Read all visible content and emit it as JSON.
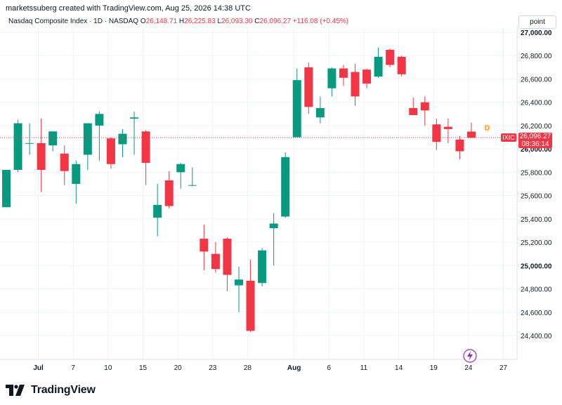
{
  "header": {
    "created_by": "marketssuberg created with TradingView.com, Aug 25, 2026 14:38 UTC",
    "title": "Nasdaq Composite Index · 1D · NASDAQ",
    "ohlc": {
      "o_label": "O",
      "o": "26,148.71",
      "h_label": "H",
      "h": "26,225.83",
      "l_label": "L",
      "l": "26,093.30",
      "c_label": "C",
      "c": "26,096.27",
      "change": "+116.08 (+0.45%)"
    },
    "scale_mode": "point"
  },
  "last_price": {
    "symbol": "IXIC",
    "value": "26,096.27",
    "countdown": "08:36:14"
  },
  "event_marker": "D",
  "brand": {
    "name": "TradingView"
  },
  "colors": {
    "up": "#089981",
    "down": "#f23645",
    "price_line": "#f23645",
    "grid": "#f0f3fa",
    "text": "#131722"
  },
  "chart_data": {
    "type": "candlestick",
    "y_axis": {
      "ticks": [
        27000,
        26800,
        26600,
        26400,
        26200,
        26000,
        25800,
        25600,
        25400,
        25200,
        25000,
        24800,
        24600,
        24400
      ],
      "tick_labels": [
        "27,000.00",
        "26,800.00",
        "26,600.00",
        "26,400.00",
        "26,200.00",
        "26,000.00",
        "25,800.00",
        "25,600.00",
        "25,400.00",
        "25,200.00",
        "25,000.00",
        "24,800.00",
        "24,600.00",
        "24,400.00"
      ],
      "ylim": [
        24230,
        27060
      ]
    },
    "x_axis": {
      "ticks": [
        {
          "label": "Jul",
          "index": 1
        },
        {
          "label": "7",
          "index": 4
        },
        {
          "label": "10",
          "index": 7
        },
        {
          "label": "15",
          "index": 10
        },
        {
          "label": "20",
          "index": 13
        },
        {
          "label": "23",
          "index": 16
        },
        {
          "label": "28",
          "index": 19
        },
        {
          "label": "Aug",
          "index": 23
        },
        {
          "label": "6",
          "index": 26
        },
        {
          "label": "11",
          "index": 29
        },
        {
          "label": "14",
          "index": 32
        },
        {
          "label": "19",
          "index": 35
        },
        {
          "label": "24",
          "index": 38
        },
        {
          "label": "27",
          "index": 41
        }
      ],
      "bold_labels": [
        "Jul",
        "Aug"
      ]
    },
    "candles": [
      {
        "o": 25500,
        "h": 25820,
        "l": 25500,
        "c": 25820
      },
      {
        "o": 25820,
        "h": 26250,
        "l": 25800,
        "c": 26220
      },
      {
        "o": 26050,
        "h": 26220,
        "l": 25950,
        "c": 26050
      },
      {
        "o": 26050,
        "h": 26260,
        "l": 25630,
        "c": 25820
      },
      {
        "o": 26030,
        "h": 26140,
        "l": 25980,
        "c": 26150
      },
      {
        "o": 25960,
        "h": 26030,
        "l": 25690,
        "c": 25810
      },
      {
        "o": 25700,
        "h": 25900,
        "l": 25530,
        "c": 25870
      },
      {
        "o": 25950,
        "h": 26220,
        "l": 25820,
        "c": 26220
      },
      {
        "o": 26200,
        "h": 26320,
        "l": 25900,
        "c": 26300
      },
      {
        "o": 26090,
        "h": 26100,
        "l": 25830,
        "c": 25870
      },
      {
        "o": 26040,
        "h": 26170,
        "l": 25930,
        "c": 26130
      },
      {
        "o": 26260,
        "h": 26320,
        "l": 25950,
        "c": 26270
      },
      {
        "o": 26150,
        "h": 26160,
        "l": 25690,
        "c": 25880
      },
      {
        "o": 25410,
        "h": 25700,
        "l": 25250,
        "c": 25520
      },
      {
        "o": 25730,
        "h": 25810,
        "l": 25490,
        "c": 25510
      },
      {
        "o": 25800,
        "h": 25880,
        "l": 25660,
        "c": 25870
      },
      {
        "o": 25690,
        "h": 25840,
        "l": 25680,
        "c": 25690
      },
      {
        "o": 25230,
        "h": 25350,
        "l": 24960,
        "c": 25120
      },
      {
        "o": 25100,
        "h": 25200,
        "l": 24940,
        "c": 24970
      },
      {
        "o": 25230,
        "h": 25240,
        "l": 24780,
        "c": 24920
      },
      {
        "o": 24830,
        "h": 24990,
        "l": 24600,
        "c": 24880
      },
      {
        "o": 24870,
        "h": 25050,
        "l": 24430,
        "c": 24440
      },
      {
        "o": 24850,
        "h": 25150,
        "l": 24820,
        "c": 25130
      },
      {
        "o": 25320,
        "h": 25450,
        "l": 25000,
        "c": 25360
      },
      {
        "o": 25420,
        "h": 25970,
        "l": 25410,
        "c": 25930
      },
      {
        "o": 26100,
        "h": 26690,
        "l": 26100,
        "c": 26590
      },
      {
        "o": 26700,
        "h": 26740,
        "l": 26300,
        "c": 26360
      },
      {
        "o": 26270,
        "h": 26450,
        "l": 26220,
        "c": 26350
      },
      {
        "o": 26520,
        "h": 26700,
        "l": 26450,
        "c": 26690
      },
      {
        "o": 26690,
        "h": 26720,
        "l": 26540,
        "c": 26610
      },
      {
        "o": 26660,
        "h": 26730,
        "l": 26370,
        "c": 26450
      },
      {
        "o": 26680,
        "h": 26690,
        "l": 26520,
        "c": 26560
      },
      {
        "o": 26620,
        "h": 26870,
        "l": 26610,
        "c": 26790
      },
      {
        "o": 26850,
        "h": 26860,
        "l": 26700,
        "c": 26720
      },
      {
        "o": 26790,
        "h": 26800,
        "l": 26620,
        "c": 26640
      },
      {
        "o": 26350,
        "h": 26440,
        "l": 26300,
        "c": 26290
      },
      {
        "o": 26400,
        "h": 26450,
        "l": 26200,
        "c": 26330
      },
      {
        "o": 26210,
        "h": 26260,
        "l": 25990,
        "c": 26060
      },
      {
        "o": 26190,
        "h": 26260,
        "l": 26050,
        "c": 26170
      },
      {
        "o": 26080,
        "h": 26110,
        "l": 25910,
        "c": 25980
      },
      {
        "o": 26148.71,
        "h": 26225.83,
        "l": 26093.3,
        "c": 26096.27
      }
    ],
    "candle_colors_override": {
      "40": "down"
    }
  }
}
